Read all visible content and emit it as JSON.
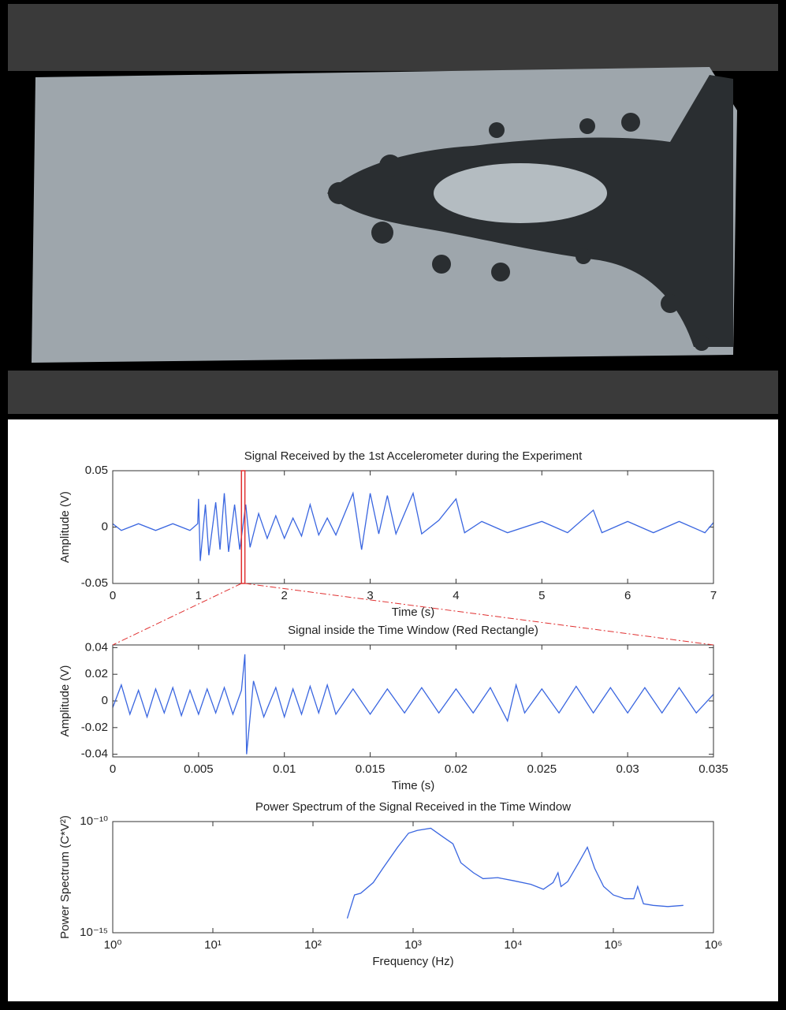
{
  "chart_data": [
    {
      "type": "line",
      "title": "Signal Received by the 1st Accelerometer during the Experiment",
      "x_label": "Time (s)",
      "y_label": "Amplitude (V)",
      "color": "#3a66e0",
      "xlim": [
        0,
        7
      ],
      "ylim": [
        -0.05,
        0.05
      ],
      "xticks": [
        0,
        1,
        2,
        3,
        4,
        5,
        6,
        7
      ],
      "yticks": [
        -0.05,
        0,
        0.05
      ],
      "highlight_xlim": [
        1.5,
        1.54
      ],
      "highlight_color": "#e03030",
      "x": [
        0,
        0.1,
        0.3,
        0.5,
        0.7,
        0.9,
        0.99,
        1.0,
        1.02,
        1.08,
        1.12,
        1.2,
        1.25,
        1.3,
        1.35,
        1.42,
        1.48,
        1.55,
        1.6,
        1.7,
        1.8,
        1.9,
        2.0,
        2.1,
        2.2,
        2.3,
        2.4,
        2.5,
        2.6,
        2.8,
        2.9,
        3.0,
        3.1,
        3.2,
        3.3,
        3.5,
        3.6,
        3.8,
        4.0,
        4.1,
        4.3,
        4.6,
        5.0,
        5.3,
        5.6,
        5.7,
        6.0,
        6.3,
        6.6,
        6.9,
        7.0
      ],
      "values": [
        0.003,
        -0.003,
        0.003,
        -0.003,
        0.003,
        -0.003,
        0.003,
        0.025,
        -0.03,
        0.02,
        -0.025,
        0.022,
        -0.02,
        0.03,
        -0.022,
        0.02,
        -0.02,
        0.02,
        -0.018,
        0.012,
        -0.01,
        0.01,
        -0.01,
        0.008,
        -0.008,
        0.02,
        -0.007,
        0.008,
        -0.007,
        0.03,
        -0.02,
        0.03,
        -0.006,
        0.028,
        -0.006,
        0.03,
        -0.006,
        0.006,
        0.025,
        -0.005,
        0.005,
        -0.005,
        0.005,
        -0.005,
        0.015,
        -0.005,
        0.005,
        -0.005,
        0.005,
        -0.005,
        0.004
      ]
    },
    {
      "type": "line",
      "title": "Signal inside the Time Window (Red Rectangle)",
      "x_label": "Time (s)",
      "y_label": "Amplitude (V)",
      "color": "#3a66e0",
      "xlim": [
        0,
        0.035
      ],
      "ylim": [
        -0.042,
        0.042
      ],
      "xticks": [
        0,
        0.005,
        0.01,
        0.015,
        0.02,
        0.025,
        0.03,
        0.035
      ],
      "yticks": [
        -0.04,
        -0.02,
        0,
        0.02,
        0.04
      ],
      "x": [
        0,
        0.0005,
        0.001,
        0.0015,
        0.002,
        0.0025,
        0.003,
        0.0035,
        0.004,
        0.0045,
        0.005,
        0.0055,
        0.006,
        0.0065,
        0.007,
        0.0075,
        0.0077,
        0.0078,
        0.0082,
        0.0088,
        0.0095,
        0.01,
        0.0105,
        0.011,
        0.0115,
        0.012,
        0.0125,
        0.013,
        0.014,
        0.015,
        0.016,
        0.017,
        0.018,
        0.019,
        0.02,
        0.021,
        0.022,
        0.023,
        0.0235,
        0.024,
        0.025,
        0.026,
        0.027,
        0.028,
        0.029,
        0.03,
        0.031,
        0.032,
        0.033,
        0.034,
        0.035
      ],
      "values": [
        -0.005,
        0.012,
        -0.01,
        0.008,
        -0.012,
        0.009,
        -0.009,
        0.01,
        -0.011,
        0.008,
        -0.01,
        0.009,
        -0.009,
        0.01,
        -0.01,
        0.008,
        0.035,
        -0.04,
        0.015,
        -0.012,
        0.01,
        -0.012,
        0.009,
        -0.01,
        0.011,
        -0.009,
        0.012,
        -0.01,
        0.009,
        -0.01,
        0.009,
        -0.009,
        0.01,
        -0.009,
        0.009,
        -0.009,
        0.01,
        -0.015,
        0.012,
        -0.009,
        0.009,
        -0.009,
        0.011,
        -0.009,
        0.01,
        -0.009,
        0.01,
        -0.009,
        0.01,
        -0.009,
        0.005
      ]
    },
    {
      "type": "line",
      "title": "Power Spectrum of the Signal Received in the Time Window",
      "x_label": "Frequency (Hz)",
      "y_label": "Power Spectrum (C*V²)",
      "color": "#3a66e0",
      "xscale": "log",
      "yscale": "log",
      "xlim": [
        1,
        1000000
      ],
      "ylim": [
        1e-15,
        1e-10
      ],
      "xticks": [
        {
          "value": 1,
          "label": "10⁰"
        },
        {
          "value": 10,
          "label": "10¹"
        },
        {
          "value": 100,
          "label": "10²"
        },
        {
          "value": 1000,
          "label": "10³"
        },
        {
          "value": 10000,
          "label": "10⁴"
        },
        {
          "value": 100000,
          "label": "10⁵"
        },
        {
          "value": 1000000,
          "label": "10⁶"
        }
      ],
      "yticks": [
        {
          "value": 1e-15,
          "label": "10⁻¹⁵"
        },
        {
          "value": 1e-10,
          "label": "10⁻¹⁰"
        }
      ],
      "x": [
        220,
        260,
        300,
        400,
        500,
        700,
        900,
        1100,
        1500,
        2000,
        2500,
        3000,
        4000,
        5000,
        7000,
        10000,
        15000,
        20000,
        25000,
        28000,
        30000,
        35000,
        45000,
        55000,
        65000,
        80000,
        100000,
        130000,
        160000,
        175000,
        200000,
        250000,
        350000,
        500000
      ],
      "values": [
        4.4e-15,
        5e-14,
        6e-14,
        1.8e-13,
        8e-13,
        7e-12,
        3e-11,
        4e-11,
        5e-11,
        2e-11,
        1e-11,
        1.4e-12,
        5e-13,
        2.7e-13,
        3e-13,
        2.2e-13,
        1.5e-13,
        9e-14,
        1.8e-13,
        5e-13,
        1.2e-13,
        2e-13,
        1.4e-12,
        7e-12,
        8e-13,
        1.2e-13,
        5e-14,
        3.4e-14,
        3.4e-14,
        1.2e-13,
        2e-14,
        1.7e-14,
        1.5e-14,
        1.7e-14
      ]
    }
  ]
}
